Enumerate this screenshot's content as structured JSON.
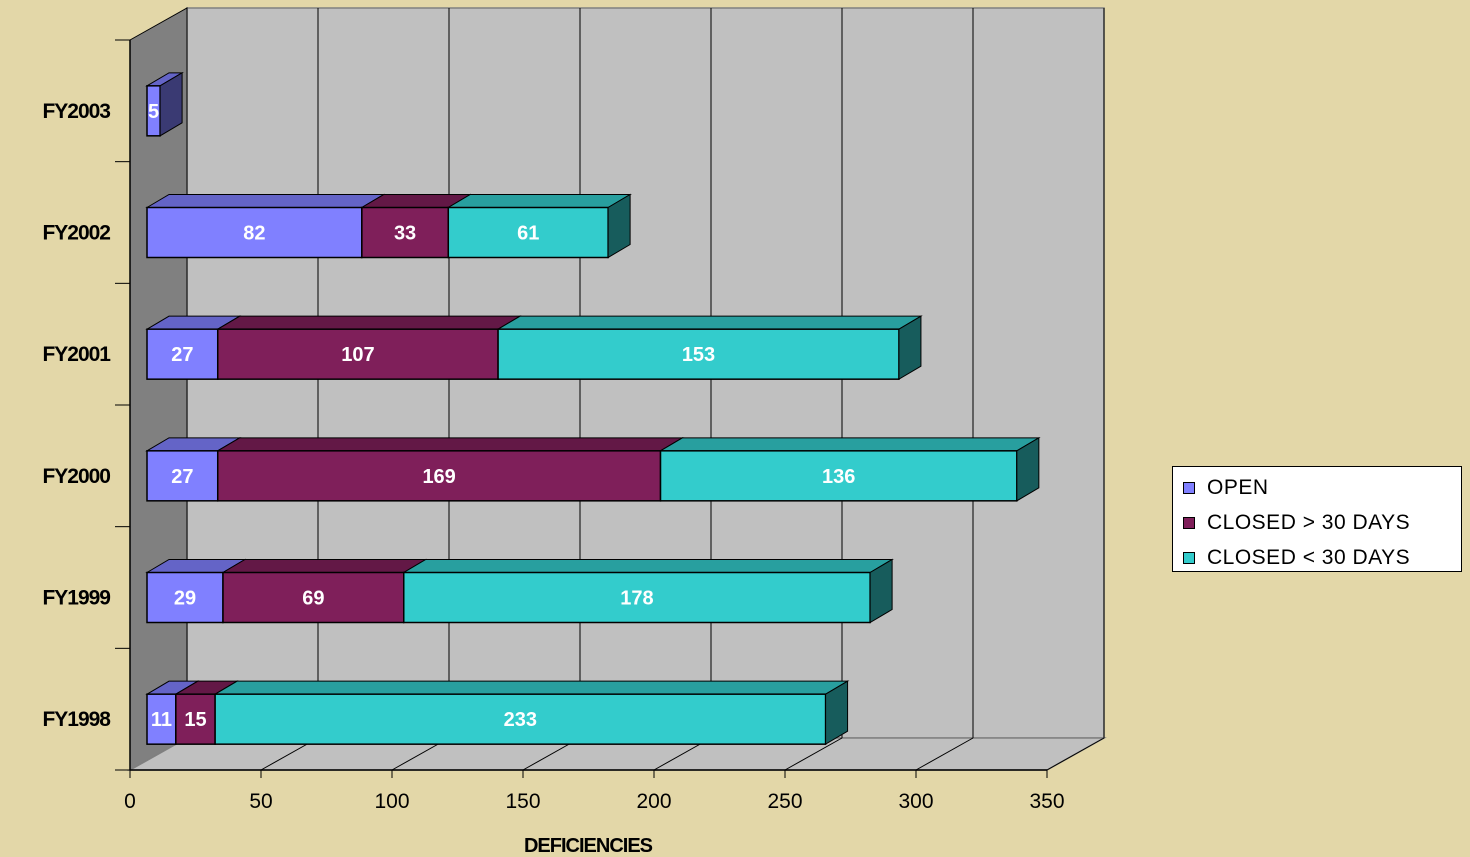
{
  "chart_data": {
    "type": "bar",
    "orientation": "horizontal",
    "stacked": true,
    "three_d": true,
    "categories": [
      "FY2003",
      "FY2002",
      "FY2001",
      "FY2000",
      "FY1999",
      "FY1998"
    ],
    "series": [
      {
        "name": "OPEN",
        "values": [
          5,
          82,
          27,
          27,
          29,
          11
        ],
        "color": "#8080ff"
      },
      {
        "name": "CLOSED > 30 DAYS",
        "values": [
          0,
          33,
          107,
          169,
          69,
          15
        ],
        "color": "#7f1f5a"
      },
      {
        "name": "CLOSED < 30 DAYS",
        "values": [
          0,
          61,
          153,
          136,
          178,
          233
        ],
        "color": "#33cccc"
      }
    ],
    "xlabel": "DEFICIENCIES",
    "ylabel": "",
    "xlim": [
      0,
      350
    ],
    "x_ticks": [
      0,
      50,
      100,
      150,
      200,
      250,
      300,
      350
    ],
    "grid": true,
    "legend_position": "right",
    "wall_color": "#c0c0c0",
    "floor_color": "#c0c0c0",
    "side_wall_color": "#808080",
    "label_color": "#ffffff"
  }
}
